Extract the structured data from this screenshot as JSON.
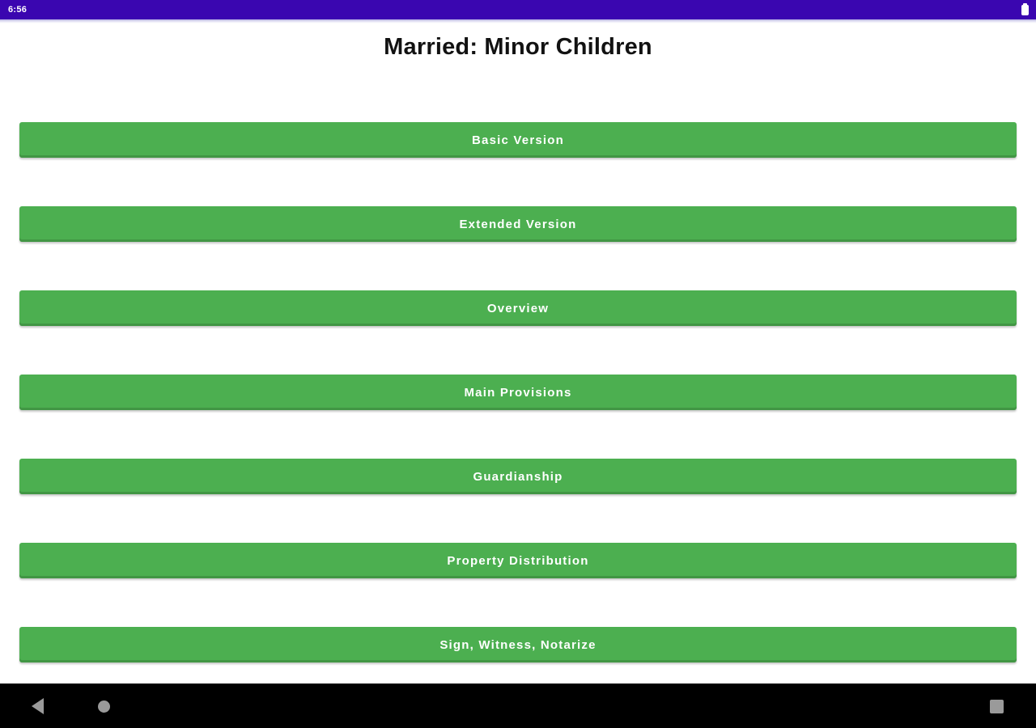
{
  "status_bar": {
    "time": "6:56",
    "battery_icon": "battery-full",
    "bg_color": "#3a06b0"
  },
  "page": {
    "title": "Married: Minor Children"
  },
  "buttons": [
    {
      "label": "Basic Version"
    },
    {
      "label": "Extended Version"
    },
    {
      "label": "Overview"
    },
    {
      "label": "Main Provisions"
    },
    {
      "label": "Guardianship"
    },
    {
      "label": "Property Distribution"
    },
    {
      "label": "Sign, Witness, Notarize"
    }
  ],
  "nav_bar": {
    "icons": [
      "back-icon",
      "home-icon",
      "recents-icon"
    ]
  },
  "colors": {
    "button_green": "#4caf50",
    "status_bar_purple": "#3a06b0",
    "nav_bar_black": "#000000",
    "nav_icon_gray": "#9a9a9a",
    "button_text": "#ffffff",
    "title_text": "#121212"
  }
}
